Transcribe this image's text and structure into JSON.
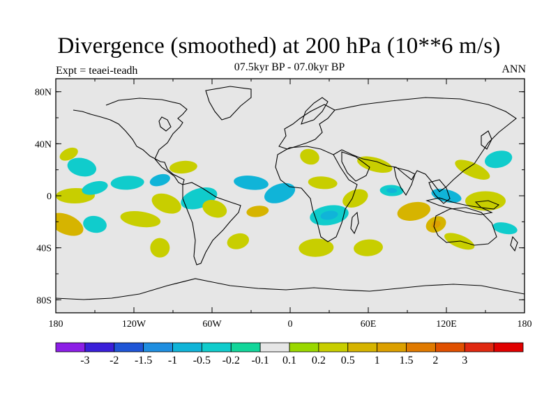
{
  "title": "Divergence (smoothed) at 200 hPa (10**6 m/s)",
  "subtitle": "07.5kyr BP - 07.0kyr BP",
  "left_label": "Expt = teaei-teadh",
  "right_label": "ANN",
  "lat_ticks": [
    "80N",
    "40N",
    "0",
    "40S",
    "80S"
  ],
  "lon_ticks": [
    "180",
    "120W",
    "60W",
    "0",
    "60E",
    "120E",
    "180"
  ],
  "colorbar": {
    "colors": [
      "#8c1ee6",
      "#3a1fd9",
      "#1f55d6",
      "#1f8ee0",
      "#10b4d8",
      "#10cccc",
      "#12d69a",
      "#e6e6e6",
      "#9ad800",
      "#c8ce00",
      "#d6b400",
      "#dca000",
      "#e07a00",
      "#e05000",
      "#e02810",
      "#e00000"
    ],
    "labels": [
      "-3",
      "-2",
      "-1.5",
      "-1",
      "-0.5",
      "-0.2",
      "-0.1",
      "0.1",
      "0.2",
      "0.5",
      "1",
      "1.5",
      "2",
      "3"
    ]
  },
  "chart_data": {
    "type": "heatmap",
    "variable": "Divergence (smoothed) at 200 hPa",
    "units": "10**6 m/s",
    "experiment": "teaei-teadh",
    "period": "07.5kyr BP - 07.0kyr BP",
    "season": "ANN",
    "x_range": [
      -180,
      180
    ],
    "y_range": [
      -90,
      90
    ],
    "levels": [
      -3,
      -2,
      -1.5,
      -1,
      -0.5,
      -0.2,
      -0.1,
      0.1,
      0.2,
      0.5,
      1,
      1.5,
      2,
      3
    ],
    "anomaly_regions": [
      {
        "lon": -170,
        "lat": 32,
        "value": 0.3
      },
      {
        "lon": -160,
        "lat": 22,
        "value": -0.3
      },
      {
        "lon": -165,
        "lat": 0,
        "value": 0.3
      },
      {
        "lon": -150,
        "lat": 6,
        "value": -0.3
      },
      {
        "lon": -172,
        "lat": -22,
        "value": 0.6
      },
      {
        "lon": -150,
        "lat": -22,
        "value": -0.4
      },
      {
        "lon": -125,
        "lat": 10,
        "value": -0.3
      },
      {
        "lon": -100,
        "lat": 12,
        "value": -0.6
      },
      {
        "lon": -95,
        "lat": -6,
        "value": 0.4
      },
      {
        "lon": -115,
        "lat": -18,
        "value": 0.3
      },
      {
        "lon": -82,
        "lat": 22,
        "value": 0.3
      },
      {
        "lon": -70,
        "lat": -2,
        "value": -0.4
      },
      {
        "lon": -58,
        "lat": -10,
        "value": 0.3
      },
      {
        "lon": -30,
        "lat": 10,
        "value": -0.6
      },
      {
        "lon": -25,
        "lat": -12,
        "value": 0.6
      },
      {
        "lon": -8,
        "lat": 2,
        "value": -0.6
      },
      {
        "lon": 15,
        "lat": 30,
        "value": 0.3
      },
      {
        "lon": 25,
        "lat": 10,
        "value": 0.4
      },
      {
        "lon": 30,
        "lat": -15,
        "value": -0.5
      },
      {
        "lon": 50,
        "lat": -2,
        "value": 0.4
      },
      {
        "lon": 65,
        "lat": 24,
        "value": 0.3
      },
      {
        "lon": 78,
        "lat": 4,
        "value": -0.5
      },
      {
        "lon": 95,
        "lat": -12,
        "value": 0.5
      },
      {
        "lon": 112,
        "lat": -22,
        "value": 0.8
      },
      {
        "lon": 120,
        "lat": 0,
        "value": -0.6
      },
      {
        "lon": 150,
        "lat": -4,
        "value": 0.3
      },
      {
        "lon": 160,
        "lat": 28,
        "value": -0.4
      },
      {
        "lon": 140,
        "lat": 20,
        "value": 0.3
      },
      {
        "lon": 165,
        "lat": -25,
        "value": -0.3
      },
      {
        "lon": 20,
        "lat": -40,
        "value": 0.3
      },
      {
        "lon": -40,
        "lat": -35,
        "value": 0.3
      },
      {
        "lon": 130,
        "lat": -35,
        "value": 0.3
      },
      {
        "lon": -100,
        "lat": -40,
        "value": 0.2
      },
      {
        "lon": 60,
        "lat": -40,
        "value": 0.3
      }
    ]
  }
}
